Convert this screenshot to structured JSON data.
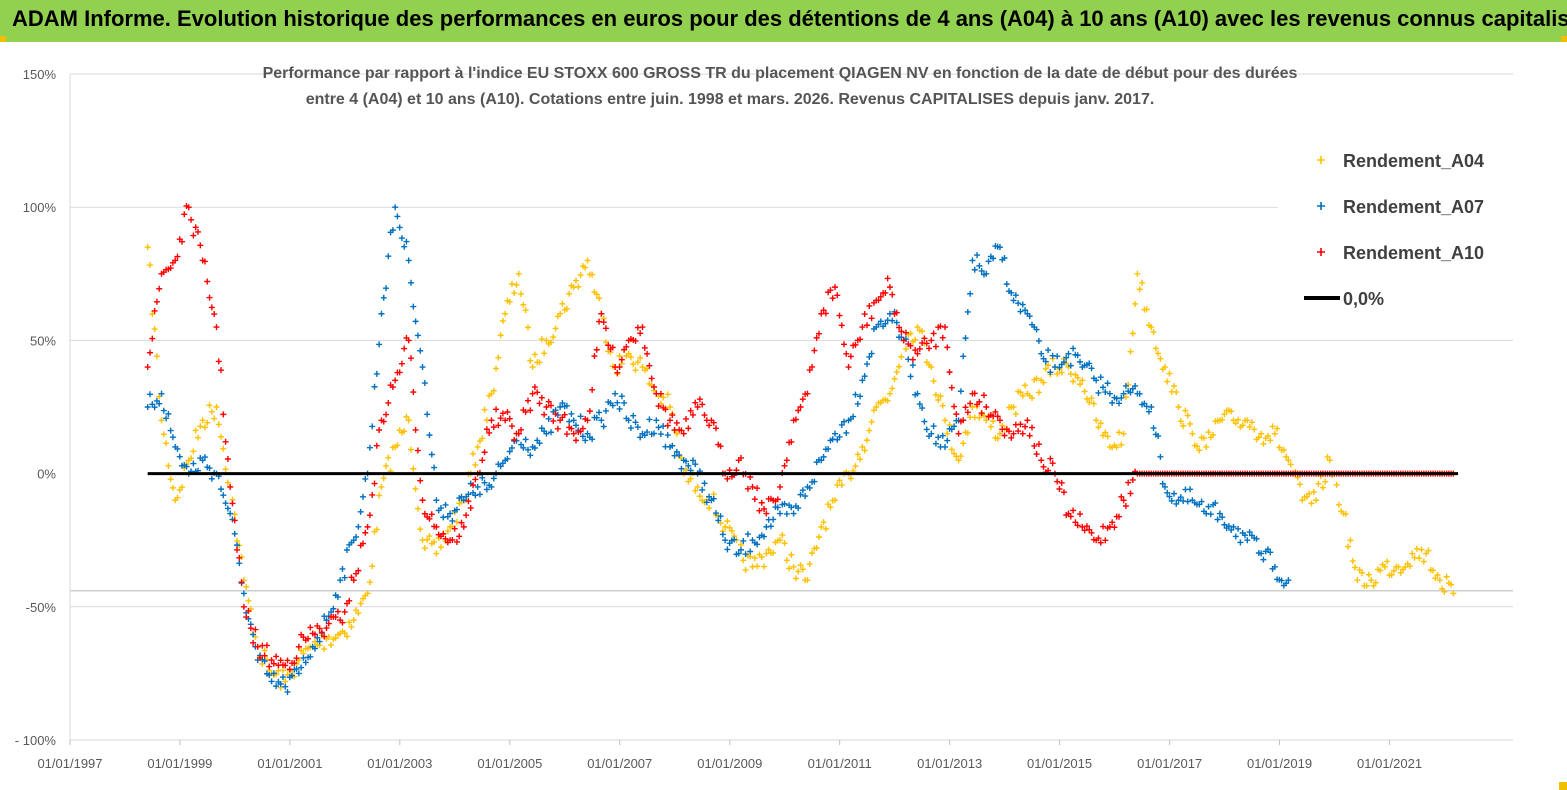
{
  "banner": {
    "text": "ADAM Informe. Evolution historique des performances en euros pour des détentions de 4 ans (A04) à 10 ans (A10) avec les revenus connus capitalisés",
    "color": "#92d050"
  },
  "chart_data": {
    "type": "scatter",
    "title_line1": "Performance par rapport à l'indice EU STOXX 600 GROSS TR  du placement QIAGEN NV en fonction de la date de début pour des durées",
    "title_line2": "entre 4 (A04) et 10 ans (A10). Cotations entre juin. 1998 et mars. 2026. Revenus CAPITALISES depuis janv. 2017.",
    "ylim": [
      -100,
      150
    ],
    "xlim": [
      "1997-01-01",
      "2023-04-01"
    ],
    "y_ticks": [
      {
        "value": 150,
        "label": "150%"
      },
      {
        "value": 100,
        "label": "100%"
      },
      {
        "value": 50,
        "label": "50%"
      },
      {
        "value": 0,
        "label": "0%"
      },
      {
        "value": -50,
        "label": "-50%"
      },
      {
        "value": -100,
        "label": "- 100%"
      }
    ],
    "x_ticks": [
      {
        "value": "1997-01-01",
        "label": "01/01/1997"
      },
      {
        "value": "1999-01-01",
        "label": "01/01/1999"
      },
      {
        "value": "2001-01-01",
        "label": "01/01/2001"
      },
      {
        "value": "2003-01-01",
        "label": "01/01/2003"
      },
      {
        "value": "2005-01-01",
        "label": "01/01/2005"
      },
      {
        "value": "2007-01-01",
        "label": "01/01/2007"
      },
      {
        "value": "2009-01-01",
        "label": "01/01/2009"
      },
      {
        "value": "2011-01-01",
        "label": "01/01/2011"
      },
      {
        "value": "2013-01-01",
        "label": "01/01/2013"
      },
      {
        "value": "2015-01-01",
        "label": "01/01/2015"
      },
      {
        "value": "2017-01-01",
        "label": "01/01/2017"
      },
      {
        "value": "2019-01-01",
        "label": "01/01/2019"
      },
      {
        "value": "2021-01-01",
        "label": "01/01/2021"
      }
    ],
    "grid": "horizontal-at-ticks",
    "legend_position": "top-right",
    "reference_line": {
      "name": "0,0%",
      "value": 0,
      "x_range": [
        "1998-06-01",
        "2022-04-01"
      ],
      "color": "#000000"
    },
    "extra_hline": {
      "value": -44
    },
    "series": [
      {
        "name": "Rendement_A04",
        "color": "#ffc000",
        "x": [
          "1998-06-01",
          "1998-09-01",
          "1998-12-01",
          "1999-03-01",
          "1999-06-01",
          "1999-09-01",
          "1999-12-01",
          "2000-03-01",
          "2000-06-01",
          "2000-09-01",
          "2000-12-01",
          "2001-03-01",
          "2001-06-01",
          "2001-09-01",
          "2001-12-01",
          "2002-03-01",
          "2002-06-01",
          "2002-09-01",
          "2002-12-01",
          "2003-03-01",
          "2003-06-01",
          "2003-09-01",
          "2003-12-01",
          "2004-03-01",
          "2004-06-01",
          "2004-09-01",
          "2004-12-01",
          "2005-03-01",
          "2005-06-01",
          "2005-09-01",
          "2005-12-01",
          "2006-03-01",
          "2006-06-01",
          "2006-09-01",
          "2006-12-01",
          "2007-03-01",
          "2007-06-01",
          "2007-09-01",
          "2007-12-01",
          "2008-03-01",
          "2008-06-01",
          "2008-09-01",
          "2008-12-01",
          "2009-03-01",
          "2009-06-01",
          "2009-09-01",
          "2009-12-01",
          "2010-03-01",
          "2010-06-01",
          "2010-09-01",
          "2010-12-01",
          "2011-03-01",
          "2011-06-01",
          "2011-09-01",
          "2011-12-01",
          "2012-03-01",
          "2012-06-01",
          "2012-09-01",
          "2012-12-01",
          "2013-03-01",
          "2013-06-01",
          "2013-09-01",
          "2013-12-01",
          "2014-03-01",
          "2014-06-01",
          "2014-09-01",
          "2014-12-01",
          "2015-03-01",
          "2015-06-01",
          "2015-09-01",
          "2015-12-01",
          "2016-03-01",
          "2016-06-01",
          "2016-09-01",
          "2016-12-01",
          "2017-03-01",
          "2017-06-01",
          "2017-09-01",
          "2017-12-01",
          "2018-03-01",
          "2018-06-01",
          "2018-09-01",
          "2018-12-01",
          "2019-03-01",
          "2019-06-01",
          "2019-09-01",
          "2019-12-01",
          "2020-03-01",
          "2020-06-01",
          "2020-09-01",
          "2020-12-01",
          "2021-03-01",
          "2021-06-01",
          "2021-09-01",
          "2021-12-01",
          "2022-03-01"
        ],
        "y": [
          85,
          20,
          -10,
          5,
          20,
          25,
          -5,
          -40,
          -65,
          -75,
          -78,
          -70,
          -65,
          -62,
          -60,
          -55,
          -45,
          -5,
          10,
          20,
          -25,
          -30,
          -20,
          -10,
          10,
          30,
          60,
          75,
          40,
          50,
          60,
          70,
          80,
          60,
          40,
          45,
          40,
          30,
          25,
          0,
          -5,
          -10,
          -20,
          -30,
          -35,
          -30,
          -25,
          -35,
          -40,
          -20,
          -10,
          0,
          10,
          25,
          30,
          50,
          55,
          40,
          20,
          5,
          25,
          20,
          15,
          25,
          30,
          35,
          40,
          40,
          35,
          20,
          10,
          15,
          75,
          55,
          40,
          25,
          15,
          10,
          20,
          20,
          20,
          15,
          15,
          5,
          -10,
          -10,
          5,
          -15,
          -40,
          -40,
          -35,
          -35,
          -30,
          -30,
          -40,
          -45
        ]
      },
      {
        "name": "Rendement_A07",
        "color": "#0070c0",
        "x": [
          "1998-06-01",
          "1998-09-01",
          "1998-12-01",
          "1999-03-01",
          "1999-06-01",
          "1999-09-01",
          "1999-12-01",
          "2000-03-01",
          "2000-06-01",
          "2000-09-01",
          "2000-12-01",
          "2001-03-01",
          "2001-06-01",
          "2001-09-01",
          "2001-12-01",
          "2002-03-01",
          "2002-06-01",
          "2002-09-01",
          "2002-12-01",
          "2003-03-01",
          "2003-06-01",
          "2003-09-01",
          "2003-12-01",
          "2004-03-01",
          "2004-06-01",
          "2004-09-01",
          "2004-12-01",
          "2005-03-01",
          "2005-06-01",
          "2005-09-01",
          "2005-12-01",
          "2006-03-01",
          "2006-06-01",
          "2006-09-01",
          "2006-12-01",
          "2007-03-01",
          "2007-06-01",
          "2007-09-01",
          "2007-12-01",
          "2008-03-01",
          "2008-06-01",
          "2008-09-01",
          "2008-12-01",
          "2009-03-01",
          "2009-06-01",
          "2009-09-01",
          "2009-12-01",
          "2010-03-01",
          "2010-06-01",
          "2010-09-01",
          "2010-12-01",
          "2011-03-01",
          "2011-06-01",
          "2011-09-01",
          "2011-12-01",
          "2012-03-01",
          "2012-06-01",
          "2012-09-01",
          "2012-12-01",
          "2013-03-01",
          "2013-06-01",
          "2013-09-01",
          "2013-12-01",
          "2014-03-01",
          "2014-06-01",
          "2014-09-01",
          "2014-12-01",
          "2015-03-01",
          "2015-06-01",
          "2015-09-01",
          "2015-12-01",
          "2016-03-01",
          "2016-06-01",
          "2016-09-01",
          "2016-12-01",
          "2017-03-01",
          "2017-06-01",
          "2017-09-01",
          "2017-12-01",
          "2018-03-01",
          "2018-06-01",
          "2018-09-01",
          "2018-12-01",
          "2019-03-01"
        ],
        "y": [
          25,
          30,
          10,
          0,
          5,
          0,
          -15,
          -45,
          -70,
          -78,
          -80,
          -75,
          -65,
          -55,
          -40,
          -25,
          0,
          60,
          100,
          80,
          40,
          -10,
          -15,
          -10,
          -5,
          -5,
          5,
          15,
          10,
          15,
          25,
          20,
          15,
          20,
          30,
          20,
          15,
          20,
          10,
          5,
          0,
          -10,
          -25,
          -30,
          -25,
          -20,
          -15,
          -15,
          -5,
          5,
          15,
          20,
          35,
          55,
          60,
          50,
          30,
          15,
          10,
          20,
          80,
          75,
          85,
          65,
          60,
          45,
          40,
          45,
          40,
          35,
          30,
          30,
          30,
          25,
          -5,
          -10,
          -10,
          -15,
          -15,
          -20,
          -25,
          -30,
          -35,
          -40
        ]
      },
      {
        "name": "Rendement_A10",
        "color": "#ff0000",
        "x": [
          "1998-06-01",
          "1998-09-01",
          "1998-12-01",
          "1999-03-01",
          "1999-06-01",
          "1999-09-01",
          "1999-12-01",
          "2000-03-01",
          "2000-06-01",
          "2000-09-01",
          "2000-12-01",
          "2001-03-01",
          "2001-06-01",
          "2001-09-01",
          "2001-12-01",
          "2002-03-01",
          "2002-06-01",
          "2002-09-01",
          "2002-12-01",
          "2003-03-01",
          "2003-06-01",
          "2003-09-01",
          "2003-12-01",
          "2004-03-01",
          "2004-06-01",
          "2004-09-01",
          "2004-12-01",
          "2005-03-01",
          "2005-06-01",
          "2005-09-01",
          "2005-12-01",
          "2006-03-01",
          "2006-06-01",
          "2006-09-01",
          "2006-12-01",
          "2007-03-01",
          "2007-06-01",
          "2007-09-01",
          "2007-12-01",
          "2008-03-01",
          "2008-06-01",
          "2008-09-01",
          "2008-12-01",
          "2009-03-01",
          "2009-06-01",
          "2009-09-01",
          "2009-12-01",
          "2010-03-01",
          "2010-06-01",
          "2010-09-01",
          "2010-12-01",
          "2011-03-01",
          "2011-06-01",
          "2011-09-01",
          "2011-12-01",
          "2012-03-01",
          "2012-06-01",
          "2012-09-01",
          "2012-12-01",
          "2013-03-01",
          "2013-06-01",
          "2013-09-01",
          "2013-12-01",
          "2014-03-01",
          "2014-06-01",
          "2014-09-01",
          "2014-12-01",
          "2015-03-01",
          "2015-06-01",
          "2015-09-01",
          "2015-12-01",
          "2016-03-01",
          "2016-06-01",
          "2016-09-01",
          "2016-12-01",
          "2017-03-01",
          "2017-06-01",
          "2017-09-01",
          "2017-12-01",
          "2018-03-01",
          "2018-06-01",
          "2018-09-01",
          "2018-12-01",
          "2019-03-01",
          "2019-06-01",
          "2019-09-01",
          "2019-12-01",
          "2020-03-01",
          "2020-06-01",
          "2020-09-01",
          "2020-12-01",
          "2021-03-01",
          "2021-06-01",
          "2021-09-01",
          "2021-12-01",
          "2022-03-01"
        ],
        "y": [
          40,
          75,
          80,
          100,
          80,
          55,
          -5,
          -50,
          -65,
          -70,
          -72,
          -65,
          -60,
          -58,
          -55,
          -40,
          -20,
          20,
          35,
          50,
          -10,
          -20,
          -25,
          -20,
          0,
          20,
          20,
          15,
          30,
          25,
          20,
          15,
          20,
          60,
          40,
          50,
          55,
          30,
          20,
          15,
          25,
          20,
          0,
          5,
          -5,
          -15,
          -5,
          20,
          30,
          60,
          70,
          40,
          55,
          65,
          70,
          50,
          45,
          50,
          55,
          15,
          30,
          25,
          20,
          15,
          20,
          5,
          0,
          -15,
          -20,
          -25,
          -20,
          -10,
          0,
          0,
          0,
          0,
          0,
          0,
          0,
          0,
          0,
          0,
          0,
          0,
          0,
          0,
          0,
          0,
          0,
          0,
          0,
          0,
          0,
          0,
          0,
          0
        ]
      }
    ]
  }
}
